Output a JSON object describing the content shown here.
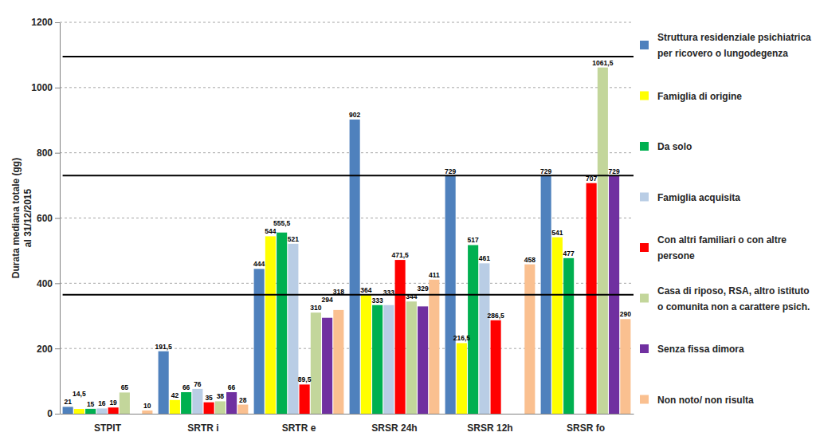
{
  "chart_data": {
    "type": "bar",
    "y_label": [
      "Durata mediana totale (gg)",
      "al 31/12/2015"
    ],
    "categories": [
      "STPIT",
      "SRTR i",
      "SRTR e",
      "SRSR 24h",
      "SRSR 12h",
      "SRSR fo"
    ],
    "series": [
      {
        "name": "Struttura residenziale psichiatrica per ricovero o lungodegenza",
        "color": "#4F81BD",
        "values": [
          21,
          191.5,
          444,
          902,
          729,
          729
        ],
        "value_labels": [
          "21",
          "191,5",
          "444",
          "902",
          "729",
          "729"
        ]
      },
      {
        "name": "Famiglia di origine",
        "color": "#FFFF00",
        "values": [
          14.5,
          42,
          544,
          364,
          216.5,
          541
        ],
        "value_labels": [
          "14,5",
          "42",
          "544",
          "364",
          "216,5",
          "541"
        ]
      },
      {
        "name": "Da solo",
        "color": "#00B050",
        "values": [
          15,
          66,
          555.5,
          333,
          517,
          477
        ],
        "value_labels": [
          "15",
          "66",
          "555,5",
          "333",
          "517",
          "477"
        ]
      },
      {
        "name": "Famiglia acquisita",
        "color": "#B9CDE5",
        "values": [
          16,
          76,
          521,
          333,
          461,
          null
        ],
        "value_labels": [
          "16",
          "76",
          "521",
          "333",
          "461",
          null
        ]
      },
      {
        "name": "Con altri familiari o con altre persone",
        "color": "#FF0000",
        "values": [
          19,
          35,
          89.5,
          471.5,
          286.5,
          707
        ],
        "value_labels": [
          "19",
          "35",
          "89,5",
          "471,5",
          "286,5",
          "707"
        ]
      },
      {
        "name": "Casa di riposo, RSA, altro istituto o comunita non a carattere psich.",
        "color": "#C3D69B",
        "values": [
          65,
          38,
          310,
          344,
          null,
          1061.5
        ],
        "value_labels": [
          "65",
          "38",
          "310",
          "344",
          null,
          "1061,5"
        ]
      },
      {
        "name": "Senza fissa dimora",
        "color": "#7030A0",
        "values": [
          null,
          66,
          294,
          329,
          null,
          729
        ],
        "value_labels": [
          null,
          "66",
          "294",
          "329",
          null,
          "729"
        ]
      },
      {
        "name": "Non noto/ non risulta",
        "color": "#FAC090",
        "values": [
          10,
          28,
          318,
          411,
          458,
          290
        ],
        "value_labels": [
          "10",
          "28",
          "318",
          "411",
          "458",
          "290"
        ]
      }
    ],
    "ylim": [
      0,
      1200
    ],
    "yticks": [
      0,
      200,
      400,
      600,
      800,
      1000,
      1200
    ],
    "grid": true,
    "legend": "right",
    "data_labels": true,
    "reference_lines": [
      365,
      730,
      1095
    ]
  }
}
